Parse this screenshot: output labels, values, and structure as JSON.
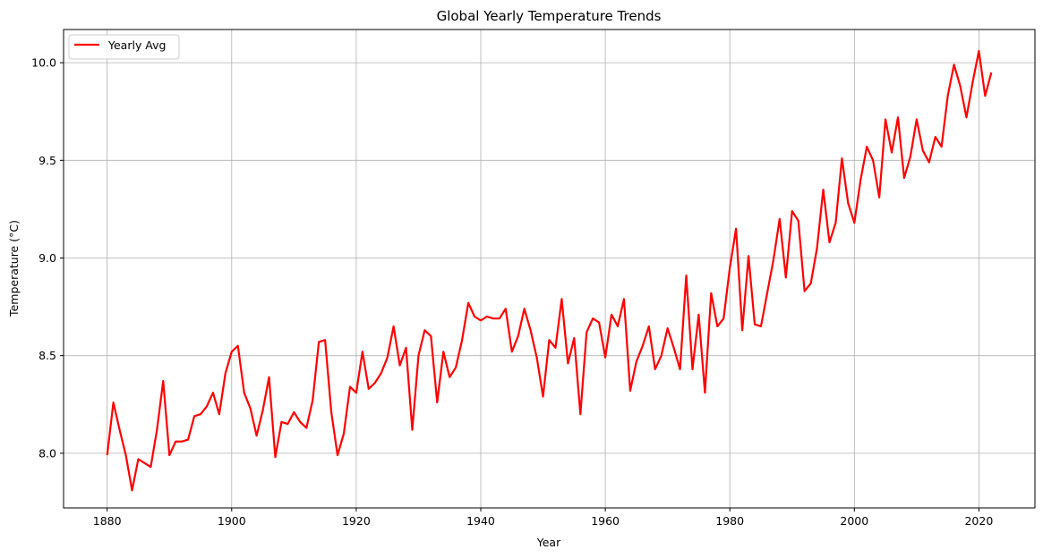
{
  "chart_data": {
    "type": "line",
    "title": "Global Yearly Temperature Trends",
    "xlabel": "Year",
    "ylabel": "Temperature (°C)",
    "xlim": [
      1873,
      2029
    ],
    "ylim": [
      7.72,
      10.17
    ],
    "xticks": [
      1880,
      1900,
      1920,
      1940,
      1960,
      1980,
      2000,
      2020
    ],
    "yticks": [
      8.0,
      8.5,
      9.0,
      9.5,
      10.0
    ],
    "ytick_labels": [
      "8.0",
      "8.5",
      "9.0",
      "9.5",
      "10.0"
    ],
    "grid": true,
    "legend_position": "top-left",
    "series": [
      {
        "name": "Yearly Avg",
        "color": "#ff0000",
        "x": [
          1880,
          1881,
          1882,
          1883,
          1884,
          1885,
          1886,
          1887,
          1888,
          1889,
          1890,
          1891,
          1892,
          1893,
          1894,
          1895,
          1896,
          1897,
          1898,
          1899,
          1900,
          1901,
          1902,
          1903,
          1904,
          1905,
          1906,
          1907,
          1908,
          1909,
          1910,
          1911,
          1912,
          1913,
          1914,
          1915,
          1916,
          1917,
          1918,
          1919,
          1920,
          1921,
          1922,
          1923,
          1924,
          1925,
          1926,
          1927,
          1928,
          1929,
          1930,
          1931,
          1932,
          1933,
          1934,
          1935,
          1936,
          1937,
          1938,
          1939,
          1940,
          1941,
          1942,
          1943,
          1944,
          1945,
          1946,
          1947,
          1948,
          1949,
          1950,
          1951,
          1952,
          1953,
          1954,
          1955,
          1956,
          1957,
          1958,
          1959,
          1960,
          1961,
          1962,
          1963,
          1964,
          1965,
          1966,
          1967,
          1968,
          1969,
          1970,
          1971,
          1972,
          1973,
          1974,
          1975,
          1976,
          1977,
          1978,
          1979,
          1980,
          1981,
          1982,
          1983,
          1984,
          1985,
          1986,
          1987,
          1988,
          1989,
          1990,
          1991,
          1992,
          1993,
          1994,
          1995,
          1996,
          1997,
          1998,
          1999,
          2000,
          2001,
          2002,
          2003,
          2004,
          2005,
          2006,
          2007,
          2008,
          2009,
          2010,
          2011,
          2012,
          2013,
          2014,
          2015,
          2016,
          2017,
          2018,
          2019,
          2020,
          2021,
          2022
        ],
        "values": [
          7.99,
          8.26,
          8.12,
          7.99,
          7.81,
          7.97,
          7.95,
          7.93,
          8.12,
          8.37,
          7.99,
          8.06,
          8.06,
          8.07,
          8.19,
          8.2,
          8.24,
          8.31,
          8.2,
          8.41,
          8.52,
          8.55,
          8.31,
          8.23,
          8.09,
          8.22,
          8.39,
          7.98,
          8.16,
          8.15,
          8.21,
          8.16,
          8.13,
          8.27,
          8.57,
          8.58,
          8.21,
          7.99,
          8.1,
          8.34,
          8.31,
          8.52,
          8.33,
          8.36,
          8.41,
          8.49,
          8.65,
          8.45,
          8.54,
          8.12,
          8.5,
          8.63,
          8.6,
          8.26,
          8.52,
          8.39,
          8.44,
          8.58,
          8.77,
          8.7,
          8.68,
          8.7,
          8.69,
          8.69,
          8.74,
          8.52,
          8.6,
          8.74,
          8.63,
          8.49,
          8.29,
          8.58,
          8.54,
          8.79,
          8.46,
          8.59,
          8.2,
          8.62,
          8.69,
          8.67,
          8.49,
          8.71,
          8.65,
          8.79,
          8.32,
          8.47,
          8.55,
          8.65,
          8.43,
          8.5,
          8.64,
          8.54,
          8.43,
          8.91,
          8.43,
          8.71,
          8.31,
          8.82,
          8.65,
          8.69,
          8.95,
          9.15,
          8.63,
          9.01,
          8.66,
          8.65,
          8.82,
          8.99,
          9.2,
          8.9,
          9.24,
          9.19,
          8.83,
          8.87,
          9.05,
          9.35,
          9.08,
          9.18,
          9.51,
          9.28,
          9.18,
          9.4,
          9.57,
          9.5,
          9.31,
          9.71,
          9.54,
          9.72,
          9.41,
          9.52,
          9.71,
          9.55,
          9.49,
          9.62,
          9.57,
          9.83,
          9.99,
          9.88,
          9.72,
          9.9,
          10.06,
          9.83,
          9.95
        ]
      }
    ]
  }
}
